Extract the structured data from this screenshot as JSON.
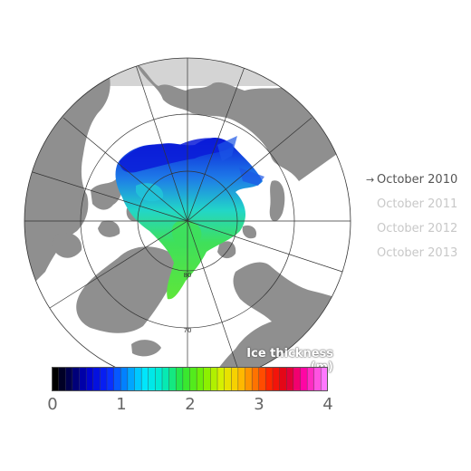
{
  "legend": {
    "title": "Ice thickness (m)",
    "ticks": [
      "0",
      "1",
      "2",
      "3",
      "4"
    ],
    "range": [
      0,
      4
    ]
  },
  "timeline": {
    "items": [
      {
        "label": "October 2010",
        "active": true
      },
      {
        "label": "October 2011",
        "active": false
      },
      {
        "label": "October 2012",
        "active": false
      },
      {
        "label": "October 2013",
        "active": false
      }
    ],
    "arrow": "→"
  },
  "map": {
    "latitude_labels": [
      "80",
      "70"
    ],
    "colors": {
      "land": "#8f8f8f",
      "ocean": "#ffffff",
      "no_data": "#d4d4d4",
      "grid": "#333333"
    }
  }
}
